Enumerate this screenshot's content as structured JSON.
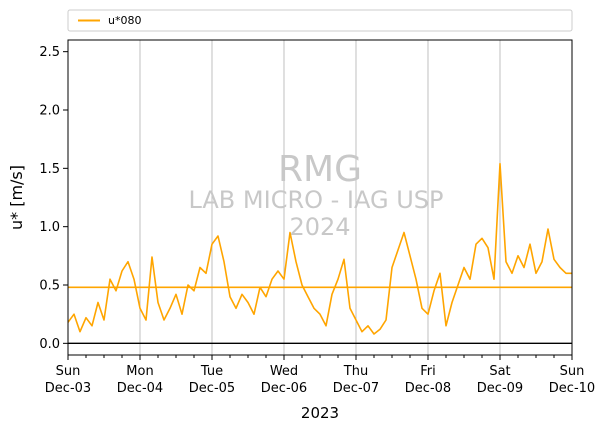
{
  "colors": {
    "series": "#FFA500",
    "mean_line": "#FFA500",
    "zero_line": "#000000",
    "grid": "#b0b0b0",
    "watermark": "#c8c8c8"
  },
  "watermark": {
    "line1": "RMG",
    "line2": "LAB MICRO - IAG USP",
    "line3": "2024"
  },
  "chart_data": {
    "type": "line",
    "title": "",
    "xlabel": "2023",
    "ylabel": "u* [m/s]",
    "ylim": [
      -0.1,
      2.6
    ],
    "yticks": [
      "0.0",
      "0.5",
      "1.0",
      "1.5",
      "2.0",
      "2.5"
    ],
    "xlim": [
      "2023-12-03",
      "2023-12-10"
    ],
    "xticks": [
      {
        "day": "Sun",
        "date": "Dec-03"
      },
      {
        "day": "Mon",
        "date": "Dec-04"
      },
      {
        "day": "Tue",
        "date": "Dec-05"
      },
      {
        "day": "Wed",
        "date": "Dec-06"
      },
      {
        "day": "Thu",
        "date": "Dec-07"
      },
      {
        "day": "Fri",
        "date": "Dec-08"
      },
      {
        "day": "Sat",
        "date": "Dec-09"
      },
      {
        "day": "Sun",
        "date": "Dec-10"
      }
    ],
    "grid": "vertical",
    "legend_position": "above plot, left",
    "mean_value": 0.48,
    "zero_line": 0.0,
    "series": [
      {
        "name": "u*080",
        "x": [
          "2023-12-03 00:00",
          "2023-12-03 02:00",
          "2023-12-03 04:00",
          "2023-12-03 06:00",
          "2023-12-03 08:00",
          "2023-12-03 10:00",
          "2023-12-03 12:00",
          "2023-12-03 14:00",
          "2023-12-03 16:00",
          "2023-12-03 18:00",
          "2023-12-03 20:00",
          "2023-12-03 22:00",
          "2023-12-04 00:00",
          "2023-12-04 02:00",
          "2023-12-04 04:00",
          "2023-12-04 06:00",
          "2023-12-04 08:00",
          "2023-12-04 10:00",
          "2023-12-04 12:00",
          "2023-12-04 14:00",
          "2023-12-04 16:00",
          "2023-12-04 18:00",
          "2023-12-04 20:00",
          "2023-12-04 22:00",
          "2023-12-05 00:00",
          "2023-12-05 02:00",
          "2023-12-05 04:00",
          "2023-12-05 06:00",
          "2023-12-05 08:00",
          "2023-12-05 10:00",
          "2023-12-05 12:00",
          "2023-12-05 14:00",
          "2023-12-05 16:00",
          "2023-12-05 18:00",
          "2023-12-05 20:00",
          "2023-12-05 22:00",
          "2023-12-06 00:00",
          "2023-12-06 02:00",
          "2023-12-06 04:00",
          "2023-12-06 06:00",
          "2023-12-06 08:00",
          "2023-12-06 10:00",
          "2023-12-06 12:00",
          "2023-12-06 14:00",
          "2023-12-06 16:00",
          "2023-12-06 18:00",
          "2023-12-06 20:00",
          "2023-12-06 22:00",
          "2023-12-07 00:00",
          "2023-12-07 02:00",
          "2023-12-07 04:00",
          "2023-12-07 06:00",
          "2023-12-07 08:00",
          "2023-12-07 10:00",
          "2023-12-07 12:00",
          "2023-12-07 14:00",
          "2023-12-07 16:00",
          "2023-12-07 18:00",
          "2023-12-07 20:00",
          "2023-12-07 22:00",
          "2023-12-08 00:00",
          "2023-12-08 02:00",
          "2023-12-08 04:00",
          "2023-12-08 06:00",
          "2023-12-08 08:00",
          "2023-12-08 10:00",
          "2023-12-08 12:00",
          "2023-12-08 14:00",
          "2023-12-08 16:00",
          "2023-12-08 18:00",
          "2023-12-08 20:00",
          "2023-12-08 22:00",
          "2023-12-09 00:00",
          "2023-12-09 02:00",
          "2023-12-09 04:00",
          "2023-12-09 06:00",
          "2023-12-09 08:00",
          "2023-12-09 10:00",
          "2023-12-09 12:00",
          "2023-12-09 14:00",
          "2023-12-09 16:00",
          "2023-12-09 18:00",
          "2023-12-09 20:00",
          "2023-12-09 22:00",
          "2023-12-10 00:00"
        ],
        "values": [
          0.18,
          0.25,
          0.1,
          0.22,
          0.15,
          0.35,
          0.2,
          0.55,
          0.45,
          0.62,
          0.7,
          0.55,
          0.3,
          0.2,
          0.74,
          0.35,
          0.2,
          0.3,
          0.42,
          0.25,
          0.5,
          0.45,
          0.65,
          0.6,
          0.85,
          0.92,
          0.7,
          0.4,
          0.3,
          0.42,
          0.35,
          0.25,
          0.48,
          0.4,
          0.55,
          0.62,
          0.55,
          0.95,
          0.7,
          0.5,
          0.4,
          0.3,
          0.25,
          0.15,
          0.42,
          0.55,
          0.72,
          0.3,
          0.2,
          0.1,
          0.15,
          0.08,
          0.12,
          0.2,
          0.65,
          0.8,
          0.95,
          0.75,
          0.55,
          0.3,
          0.25,
          0.45,
          0.6,
          0.15,
          0.35,
          0.5,
          0.65,
          0.55,
          0.85,
          0.9,
          0.82,
          0.55,
          1.54,
          0.7,
          0.6,
          0.75,
          0.65,
          0.85,
          0.6,
          0.7,
          0.98,
          0.72,
          0.65,
          0.6,
          0.6
        ]
      }
    ]
  }
}
